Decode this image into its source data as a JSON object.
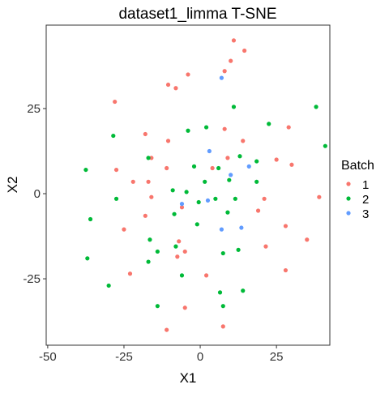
{
  "chart_data": {
    "type": "scatter",
    "title": "dataset1_limma T-SNE",
    "xlabel": "X1",
    "ylabel": "X2",
    "xlim": [
      -50.5,
      42.5
    ],
    "ylim": [
      -44.5,
      49.5
    ],
    "x_ticks": [
      -50,
      -25,
      0,
      25
    ],
    "y_ticks": [
      -25,
      0,
      25
    ],
    "x_tick_labels": [
      "-50",
      "-25",
      "0",
      "25"
    ],
    "y_tick_labels": [
      "-25",
      "0",
      "25"
    ],
    "grid": false,
    "legend": {
      "title": "Batch",
      "placement": "right"
    },
    "series": [
      {
        "name": "1",
        "color": "#F8766D",
        "points": [
          [
            11,
            45
          ],
          [
            14.5,
            42
          ],
          [
            10,
            39
          ],
          [
            8,
            36
          ],
          [
            -10.5,
            32
          ],
          [
            -8,
            31
          ],
          [
            -4,
            35
          ],
          [
            -28,
            27
          ],
          [
            -18,
            17.5
          ],
          [
            -10.5,
            15.5
          ],
          [
            8,
            19
          ],
          [
            14,
            15.5
          ],
          [
            29,
            19.5
          ],
          [
            -16,
            10.5
          ],
          [
            9,
            10.5
          ],
          [
            25,
            10
          ],
          [
            30,
            8.5
          ],
          [
            -27.5,
            7
          ],
          [
            -22,
            3.5
          ],
          [
            -17,
            3.5
          ],
          [
            -11,
            7.5
          ],
          [
            4,
            7.5
          ],
          [
            -16,
            -1
          ],
          [
            21,
            -1.5
          ],
          [
            39,
            -1
          ],
          [
            -6,
            -4
          ],
          [
            19,
            -5
          ],
          [
            -18,
            -6.5
          ],
          [
            -25,
            -10.5
          ],
          [
            28,
            -9.5
          ],
          [
            35,
            -13.5
          ],
          [
            -7,
            -14
          ],
          [
            -5,
            -17
          ],
          [
            -7.5,
            -18.5
          ],
          [
            21.5,
            -15.5
          ],
          [
            -23,
            -23.5
          ],
          [
            2,
            -24
          ],
          [
            28,
            -22.5
          ],
          [
            -5,
            -33.5
          ],
          [
            -11,
            -40
          ],
          [
            7.5,
            -39
          ]
        ]
      },
      {
        "name": "2",
        "color": "#00BA38",
        "points": [
          [
            11,
            25.5
          ],
          [
            38,
            25.5
          ],
          [
            2,
            19.5
          ],
          [
            -4,
            18.5
          ],
          [
            22.5,
            20.5
          ],
          [
            -28.5,
            17
          ],
          [
            41,
            14
          ],
          [
            -17,
            10.5
          ],
          [
            13,
            11
          ],
          [
            18.5,
            9.5
          ],
          [
            -37.5,
            7
          ],
          [
            -2,
            8
          ],
          [
            6,
            7.5
          ],
          [
            1.5,
            3.5
          ],
          [
            9.5,
            4
          ],
          [
            -9,
            1
          ],
          [
            -4.5,
            0.5
          ],
          [
            18.5,
            3.5
          ],
          [
            -27.5,
            -1.5
          ],
          [
            -0.5,
            -2.5
          ],
          [
            5,
            -1.5
          ],
          [
            11.5,
            -1.5
          ],
          [
            -8.5,
            -6
          ],
          [
            9,
            -5.5
          ],
          [
            -36,
            -7.5
          ],
          [
            -1,
            -9
          ],
          [
            -16.5,
            -13.5
          ],
          [
            -14,
            -17
          ],
          [
            -37,
            -19
          ],
          [
            7.5,
            -17.5
          ],
          [
            12.5,
            -16.5
          ],
          [
            -8,
            -15.5
          ],
          [
            -17,
            -20
          ],
          [
            -30,
            -27
          ],
          [
            -6,
            -24
          ],
          [
            6.5,
            -29
          ],
          [
            14,
            -28.5
          ],
          [
            -14,
            -33
          ],
          [
            7.5,
            -33
          ]
        ]
      },
      {
        "name": "3",
        "color": "#619CFF",
        "points": [
          [
            7,
            34
          ],
          [
            3,
            12.5
          ],
          [
            16,
            8
          ],
          [
            10,
            5.5
          ],
          [
            2.5,
            -2
          ],
          [
            -6,
            -3
          ],
          [
            7,
            -10.5
          ],
          [
            13.5,
            -10
          ]
        ]
      }
    ]
  }
}
